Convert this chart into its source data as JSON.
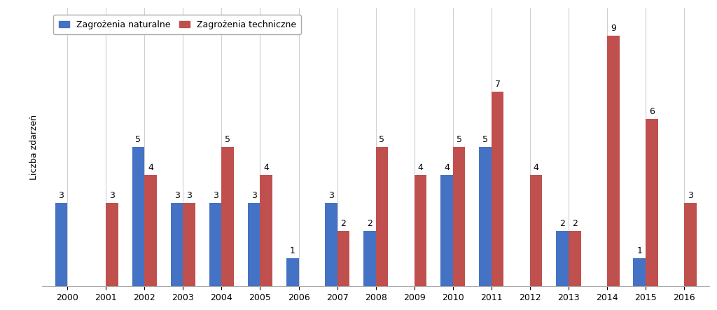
{
  "years": [
    2000,
    2001,
    2002,
    2003,
    2004,
    2005,
    2006,
    2007,
    2008,
    2009,
    2010,
    2011,
    2012,
    2013,
    2014,
    2015,
    2016
  ],
  "naturalne": [
    3,
    0,
    5,
    3,
    3,
    3,
    1,
    3,
    2,
    0,
    4,
    5,
    0,
    2,
    0,
    1,
    0
  ],
  "techniczne": [
    0,
    3,
    4,
    3,
    5,
    4,
    0,
    2,
    5,
    4,
    5,
    7,
    4,
    2,
    9,
    6,
    3
  ],
  "color_naturalne": "#4472C4",
  "color_techniczne": "#C0504D",
  "ylabel": "Liczba zdarzeń",
  "legend_naturalne": "Zagrożenia naturalne",
  "legend_techniczne": "Zagrożenia techniczne",
  "ylim": [
    0,
    10
  ],
  "bar_width": 0.32,
  "label_fontsize": 9,
  "axis_fontsize": 9,
  "legend_fontsize": 9,
  "background_color": "#FFFFFF",
  "grid_color": "#D0D0D0",
  "spine_color": "#AAAAAA"
}
